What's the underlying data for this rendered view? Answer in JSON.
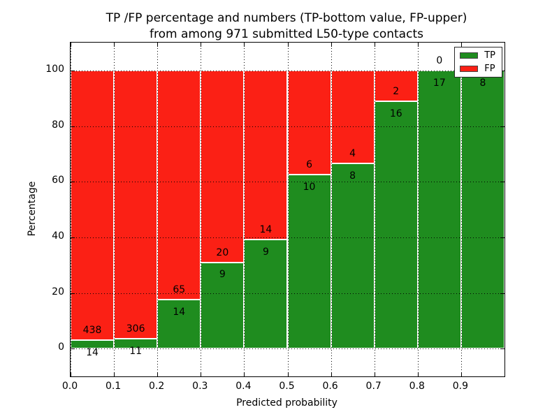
{
  "title": {
    "line1": "TP /FP percentage and numbers (TP-bottom value, FP-upper)",
    "line2": "from among 971 submitted L50-type contacts"
  },
  "chart_data": {
    "type": "bar",
    "stacked": true,
    "normalized": "each bin scaled to 100%",
    "title": "TP /FP percentage and numbers (TP-bottom value, FP-upper)\nfrom among 971 submitted L50-type contacts",
    "xlabel": "Predicted probability",
    "ylabel": "Percentage",
    "total_contacts": 971,
    "bin_width": 0.1,
    "categories": [
      "0.0-0.1",
      "0.1-0.2",
      "0.2-0.3",
      "0.3-0.4",
      "0.4-0.5",
      "0.5-0.6",
      "0.6-0.7",
      "0.7-0.8",
      "0.8-0.9",
      "0.9-1.0"
    ],
    "series": [
      {
        "name": "TP",
        "color": "#1f8c1f",
        "counts": [
          14,
          11,
          14,
          9,
          9,
          10,
          8,
          16,
          17,
          8
        ]
      },
      {
        "name": "FP",
        "color": "#fb2015",
        "counts": [
          438,
          306,
          65,
          20,
          14,
          6,
          4,
          2,
          0,
          0
        ]
      }
    ],
    "tp_percent": [
      3.1,
      3.5,
      17.7,
      31.0,
      39.1,
      62.5,
      66.7,
      88.9,
      100.0,
      100.0
    ],
    "xlim": [
      0.0,
      1.0
    ],
    "ylim": [
      -10,
      110
    ],
    "xticks": [
      "0.0",
      "0.1",
      "0.2",
      "0.3",
      "0.4",
      "0.5",
      "0.6",
      "0.7",
      "0.8",
      "0.9"
    ],
    "yticks": [
      "0",
      "20",
      "40",
      "60",
      "80",
      "100"
    ],
    "grid": "dotted, drawn over bars",
    "legend": {
      "position": "upper right",
      "entries": [
        {
          "label": "TP",
          "color": "#1f8c1f"
        },
        {
          "label": "FP",
          "color": "#fb2015"
        }
      ]
    }
  }
}
